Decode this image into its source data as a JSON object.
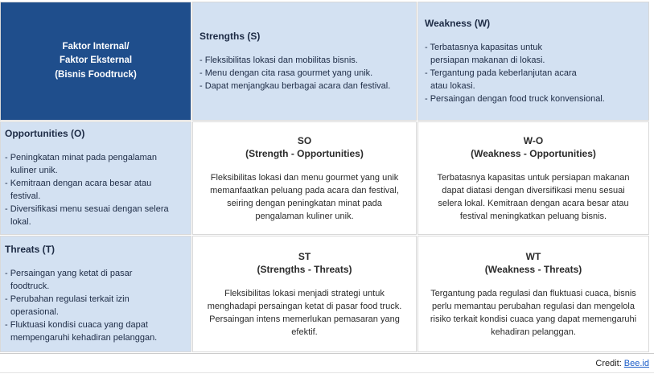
{
  "colors": {
    "header_cell_bg": "#1F4E8C",
    "factor_cell_bg": "#D3E1F2",
    "strategy_cell_bg": "#FFFFFF",
    "link_blue": "#1A5CC8"
  },
  "matrix": {
    "header_cell": {
      "text": "Faktor Internal/\nFaktor Eksternal\n(Bisnis Foodtruck)"
    },
    "strengths": {
      "title": "Strengths (S)",
      "items": [
        "- Fleksibilitas lokasi dan mobilitas bisnis.",
        "- Menu dengan cita rasa gourmet yang unik.",
        "- Dapat menjangkau berbagai acara dan festival."
      ]
    },
    "weakness": {
      "title": "Weakness (W)",
      "items": [
        "- Terbatasnya kapasitas untuk\npersiapan makanan di lokasi.",
        "- Tergantung pada keberlanjutan acara\natau lokasi.",
        "- Persaingan dengan food truck konvensional."
      ]
    },
    "opportunities": {
      "title": "Opportunities (O)",
      "items": [
        "- Peningkatan minat pada pengalaman\nkuliner unik.",
        "- Kemitraan dengan acara besar atau\nfestival.",
        "- Diversifikasi menu sesuai dengan selera\nlokal."
      ]
    },
    "threats": {
      "title": "Threats (T)",
      "items": [
        "- Persaingan yang ketat di pasar\nfoodtruck.",
        "- Perubahan regulasi terkait izin\noperasional.",
        "- Fluktuasi kondisi cuaca yang dapat\nmempengaruhi kehadiran pelanggan."
      ]
    },
    "so": {
      "title": "SO",
      "subtitle": "(Strength - Opportunities)",
      "body": "Fleksibilitas lokasi dan menu gourmet yang unik\nmemanfaatkan peluang pada acara dan festival,\nseiring dengan peningkatan minat pada\npengalaman kuliner unik."
    },
    "wo": {
      "title": "W-O",
      "subtitle": "(Weakness - Opportunities)",
      "body": "Terbatasnya kapasitas untuk persiapan makanan\ndapat diatasi dengan diversifikasi menu sesuai\nselera lokal. Kemitraan dengan acara besar atau\nfestival meningkatkan peluang bisnis."
    },
    "st": {
      "title": "ST",
      "subtitle": "(Strengths - Threats)",
      "body": "Fleksibilitas lokasi menjadi strategi untuk\nmenghadapi persaingan ketat di pasar food truck.\nPersaingan intens memerlukan pemasaran yang\nefektif."
    },
    "wt": {
      "title": "WT",
      "subtitle": "(Weakness - Threats)",
      "body": "Tergantung pada regulasi dan fluktuasi cuaca, bisnis\nperlu memantau perubahan regulasi dan mengelola\nrisiko terkait kondisi cuaca yang dapat memengaruhi\nkehadiran pelanggan."
    }
  },
  "credit": {
    "label": "Credit:",
    "link": "Bee.id"
  }
}
